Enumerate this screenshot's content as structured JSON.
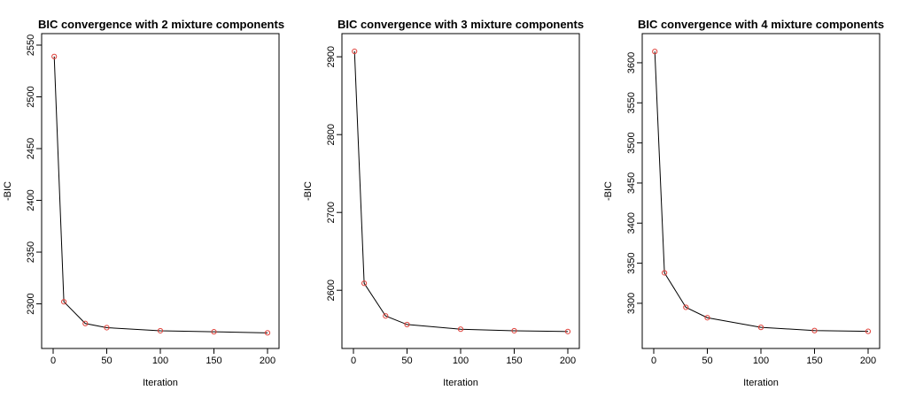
{
  "chart_data": [
    {
      "type": "line",
      "title": "BIC convergence with 2 mixture components",
      "xlabel": "Iteration",
      "ylabel": "-BIC",
      "xlim": [
        0,
        200
      ],
      "ylim": [
        2268,
        2550
      ],
      "xticks": [
        0,
        50,
        100,
        150,
        200
      ],
      "yticks": [
        2300,
        2350,
        2400,
        2450,
        2500,
        2550
      ],
      "series": [
        {
          "x": [
            1,
            10,
            30,
            50,
            100,
            150,
            200
          ],
          "y": [
            2539,
            2302,
            2281,
            2277,
            2274,
            2273,
            2272
          ]
        }
      ],
      "grid": false,
      "line_color": "#000000",
      "marker_color": "#e0413a"
    },
    {
      "type": "line",
      "title": "BIC convergence with 3 mixture components",
      "xlabel": "Iteration",
      "ylabel": "-BIC",
      "xlim": [
        0,
        200
      ],
      "ylim": [
        2540,
        2915
      ],
      "xticks": [
        0,
        50,
        100,
        150,
        200
      ],
      "yticks": [
        2600,
        2700,
        2800,
        2900
      ],
      "series": [
        {
          "x": [
            1,
            10,
            30,
            50,
            100,
            150,
            200
          ],
          "y": [
            2907,
            2609,
            2567,
            2556,
            2550,
            2548,
            2547
          ]
        }
      ],
      "grid": false,
      "line_color": "#000000",
      "marker_color": "#e0413a"
    },
    {
      "type": "line",
      "title": "BIC convergence with 4 mixture components",
      "xlabel": "Iteration",
      "ylabel": "-BIC",
      "xlim": [
        0,
        200
      ],
      "ylim": [
        3258,
        3622
      ],
      "xticks": [
        0,
        50,
        100,
        150,
        200
      ],
      "yticks": [
        3300,
        3350,
        3400,
        3450,
        3500,
        3550,
        3600
      ],
      "series": [
        {
          "x": [
            1,
            10,
            30,
            50,
            100,
            150,
            200
          ],
          "y": [
            3614,
            3338,
            3295,
            3282,
            3270,
            3266,
            3265
          ]
        }
      ],
      "grid": false,
      "line_color": "#000000",
      "marker_color": "#e0413a"
    }
  ]
}
